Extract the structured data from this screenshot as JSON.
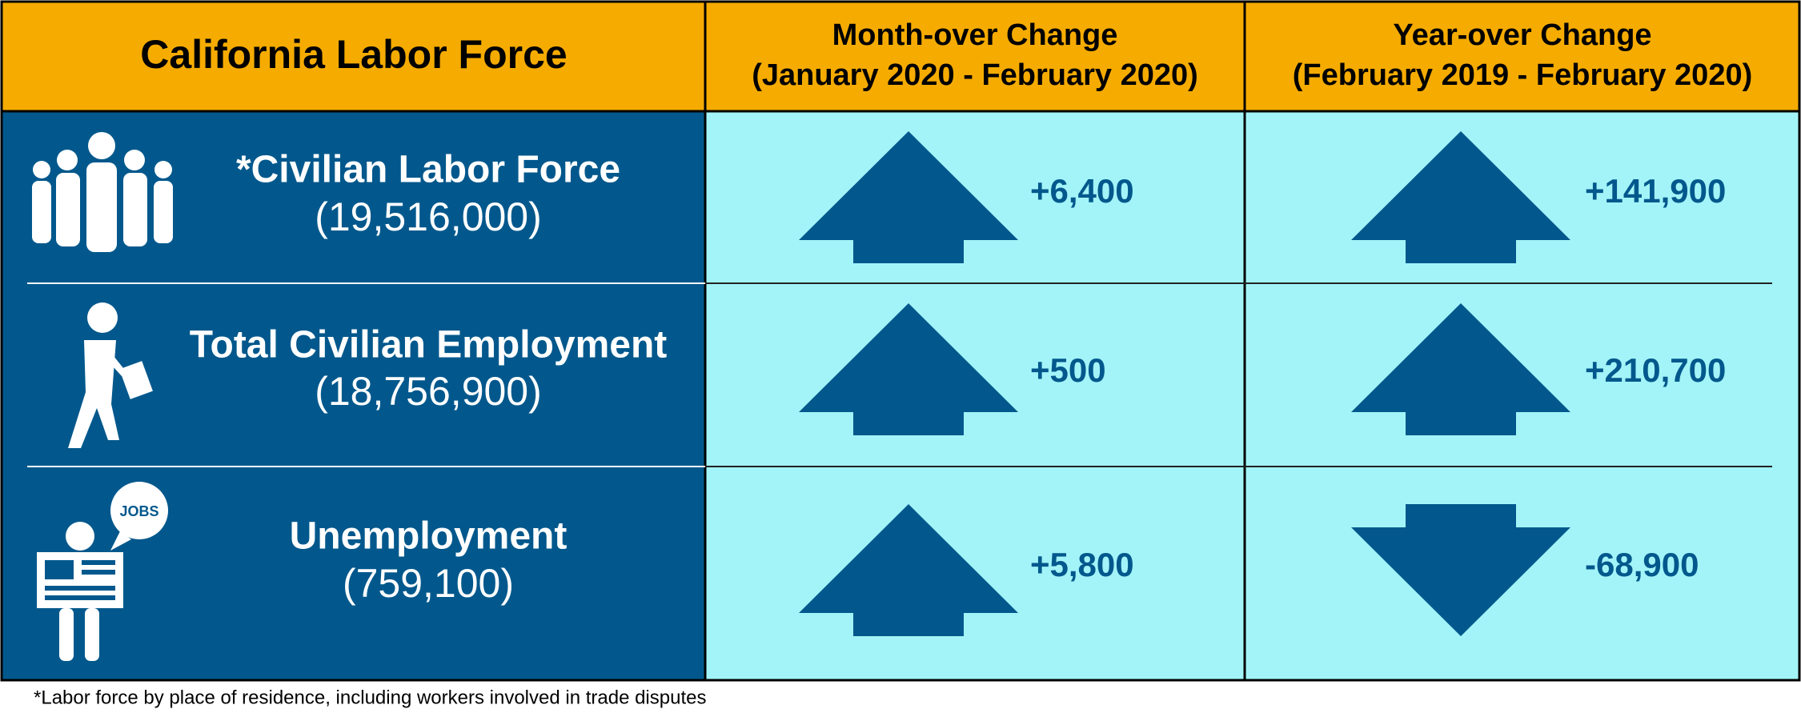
{
  "header": {
    "title": "California Labor Force",
    "month_change": "Month-over Change",
    "month_period": "(January 2020 - February 2020)",
    "year_change": "Year-over Change",
    "year_period": "(February 2019 - February 2020)"
  },
  "rows": [
    {
      "label": "*Civilian Labor Force",
      "total": "(19,516,000)",
      "month_change": "+6,400",
      "year_change": "+141,900"
    },
    {
      "label": "Total Civilian Employment",
      "total": "(18,756,900)",
      "month_change": "+500",
      "year_change": "+210,700"
    },
    {
      "label": "Unemployment",
      "total": "(759,100)",
      "month_change": "+5,800",
      "year_change": "-68,900",
      "icon_label": "JOBS"
    }
  ],
  "footnote": "*Labor force by place of residence, including workers involved in trade disputes"
}
